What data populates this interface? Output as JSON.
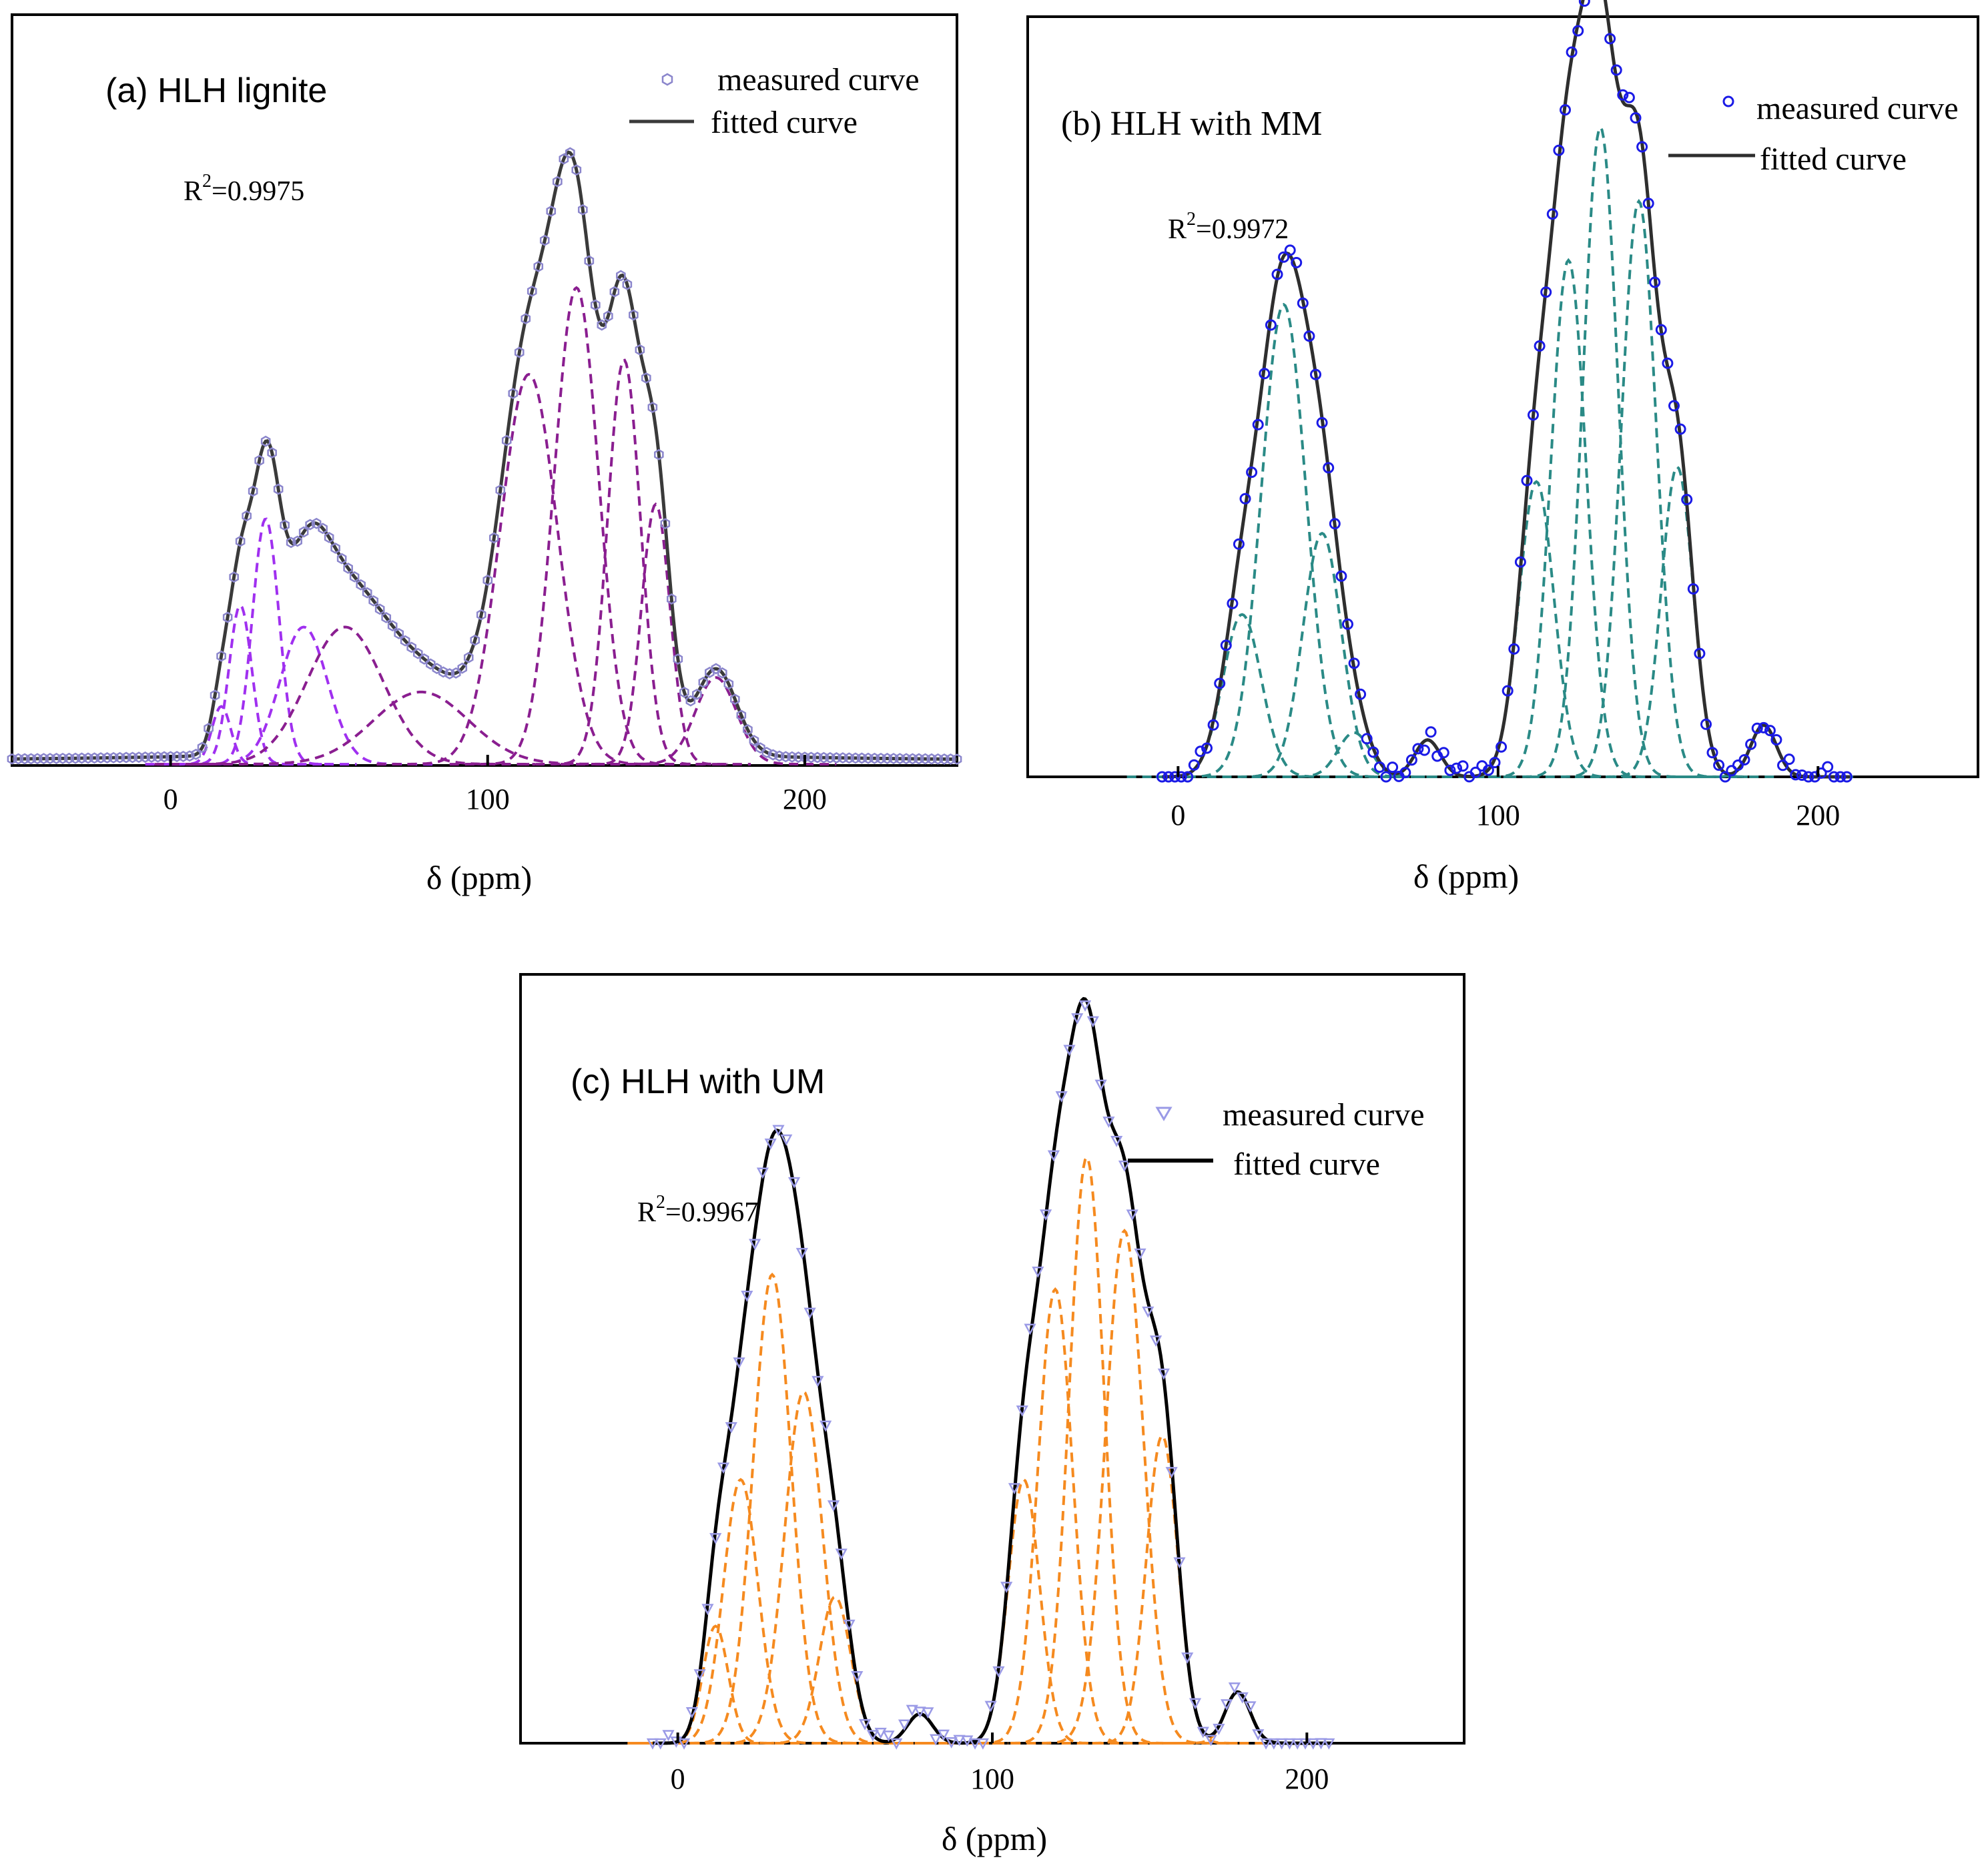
{
  "chart_data": [
    {
      "id": "a",
      "type": "line",
      "title": "(a)  HLH lignite",
      "r2_label": "R",
      "r2_value": "=0.9975",
      "r2_exp": "2",
      "xlabel": "δ (ppm)",
      "xlim": [
        -50,
        248
      ],
      "xticks": [
        0,
        100,
        200
      ],
      "ylim": [
        0,
        1.04
      ],
      "legend": {
        "measured": "measured curve",
        "fitted": "fitted curve",
        "position": "top-right"
      },
      "colors": {
        "measured": "#8b86cc",
        "fitted": "#3a3a3a",
        "components": [
          "#a030f0",
          "#8a1e90"
        ]
      },
      "marker": "hexagon",
      "baseline": 0.006,
      "tail": 0.06,
      "measured_range": [
        -50,
        248,
        2
      ],
      "components": [
        {
          "center": 16,
          "amp": 0.08,
          "width": 3,
          "color": "#a030f0"
        },
        {
          "center": 22,
          "amp": 0.22,
          "width": 3.6,
          "color": "#a030f0"
        },
        {
          "center": 30,
          "amp": 0.34,
          "width": 4.2,
          "color": "#a030f0"
        },
        {
          "center": 42,
          "amp": 0.19,
          "width": 7.5,
          "color": "#a030f0"
        },
        {
          "center": 55,
          "amp": 0.19,
          "width": 12,
          "color": "#8a1e90"
        },
        {
          "center": 79,
          "amp": 0.1,
          "width": 15,
          "color": "#8a1e90"
        },
        {
          "center": 113,
          "amp": 0.54,
          "width": 9,
          "color": "#8a1e90"
        },
        {
          "center": 128,
          "amp": 0.66,
          "width": 7,
          "color": "#8a1e90"
        },
        {
          "center": 143,
          "amp": 0.56,
          "width": 5.2,
          "color": "#8a1e90"
        },
        {
          "center": 153,
          "amp": 0.36,
          "width": 4.5,
          "color": "#8a1e90"
        },
        {
          "center": 172,
          "amp": 0.12,
          "width": 6.5,
          "color": "#8a1e90"
        }
      ]
    },
    {
      "id": "b",
      "type": "line",
      "title": "(b)   HLH with  MM",
      "r2_label": "R",
      "r2_value": "=0.9972",
      "r2_exp": "2",
      "xlabel": "δ (ppm)",
      "xlim": [
        -47,
        250
      ],
      "xticks": [
        0,
        100,
        200
      ],
      "ylim": [
        0,
        1.03
      ],
      "legend": {
        "measured": "measured curve",
        "fitted": "fitted curve",
        "position": "top-right"
      },
      "colors": {
        "measured": "#1a1ae6",
        "fitted": "#2e2e2e",
        "components": [
          "#2a8a86"
        ]
      },
      "marker": "circle",
      "baseline": 0.0,
      "tail": 0.0,
      "measured_range": [
        -5,
        210,
        2
      ],
      "components": [
        {
          "center": 20,
          "amp": 0.22,
          "width": 6,
          "color": "#2a8a86"
        },
        {
          "center": 33,
          "amp": 0.64,
          "width": 7,
          "color": "#2a8a86"
        },
        {
          "center": 45,
          "amp": 0.33,
          "width": 6,
          "color": "#2a8a86"
        },
        {
          "center": 55,
          "amp": 0.06,
          "width": 5,
          "color": "#2a8a86"
        },
        {
          "center": 78,
          "amp": 0.05,
          "width": 4,
          "color": "#2a8a86"
        },
        {
          "center": 112,
          "amp": 0.4,
          "width": 5.5,
          "color": "#2a8a86"
        },
        {
          "center": 122,
          "amp": 0.7,
          "width": 5.5,
          "color": "#2a8a86"
        },
        {
          "center": 132,
          "amp": 0.88,
          "width": 5.5,
          "color": "#2a8a86"
        },
        {
          "center": 144,
          "amp": 0.78,
          "width": 5.5,
          "color": "#2a8a86"
        },
        {
          "center": 156,
          "amp": 0.42,
          "width": 5,
          "color": "#2a8a86"
        },
        {
          "center": 183,
          "amp": 0.07,
          "width": 4,
          "color": "#2a8a86"
        }
      ]
    },
    {
      "id": "c",
      "type": "line",
      "title": "(c)  HLH with UM",
      "r2_label": "R",
      "r2_value": "=0.9967",
      "r2_exp": "2",
      "xlabel": "δ (ppm)",
      "xlim": [
        -50,
        250
      ],
      "xticks": [
        0,
        100,
        200
      ],
      "ylim": [
        0,
        1.05
      ],
      "legend": {
        "measured": "measured curve",
        "fitted": "fitted curve",
        "position": "top-right"
      },
      "colors": {
        "measured": "#9a9ae6",
        "fitted": "#000000",
        "components": [
          "#f58a1f"
        ]
      },
      "marker": "triangle-down",
      "baseline": 0.0,
      "tail": 0.0,
      "measured_range": [
        -8,
        208,
        2.5
      ],
      "components": [
        {
          "center": 12,
          "amp": 0.16,
          "width": 4,
          "color": "#f58a1f"
        },
        {
          "center": 20,
          "amp": 0.36,
          "width": 5.5,
          "color": "#f58a1f"
        },
        {
          "center": 30,
          "amp": 0.64,
          "width": 6,
          "color": "#f58a1f"
        },
        {
          "center": 40,
          "amp": 0.48,
          "width": 6,
          "color": "#f58a1f"
        },
        {
          "center": 50,
          "amp": 0.2,
          "width": 5,
          "color": "#f58a1f"
        },
        {
          "center": 77,
          "amp": 0.04,
          "width": 4,
          "color": "#f58a1f"
        },
        {
          "center": 110,
          "amp": 0.36,
          "width": 5,
          "color": "#f58a1f"
        },
        {
          "center": 120,
          "amp": 0.62,
          "width": 5.5,
          "color": "#f58a1f"
        },
        {
          "center": 130,
          "amp": 0.8,
          "width": 5.5,
          "color": "#f58a1f"
        },
        {
          "center": 142,
          "amp": 0.7,
          "width": 6,
          "color": "#f58a1f"
        },
        {
          "center": 154,
          "amp": 0.42,
          "width": 5,
          "color": "#f58a1f"
        },
        {
          "center": 178,
          "amp": 0.07,
          "width": 4,
          "color": "#f58a1f"
        }
      ]
    }
  ]
}
